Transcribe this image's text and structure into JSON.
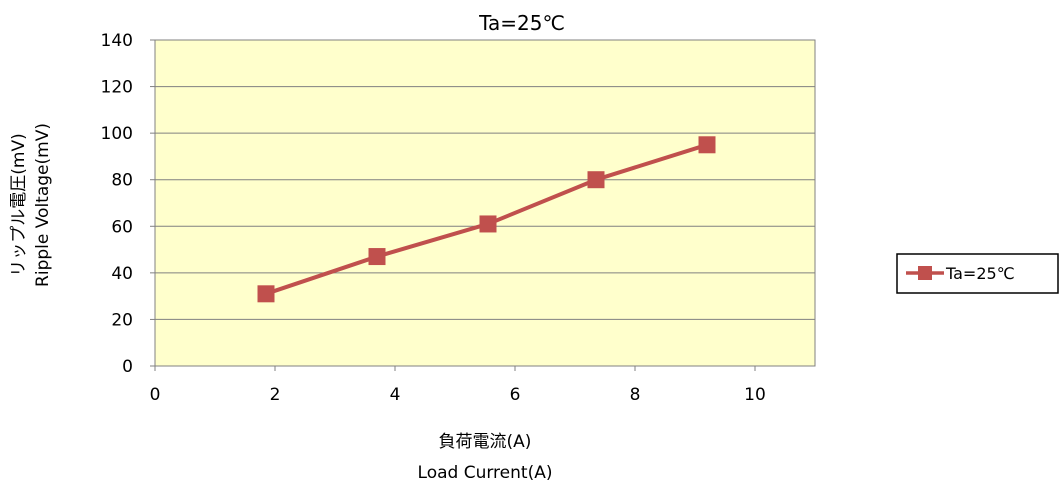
{
  "chart_data": {
    "type": "line",
    "title": "Ta=25℃",
    "xlabel": [
      "負荷電流(A)",
      "Load Current(A)"
    ],
    "ylabel": [
      "リップル電圧(mV)",
      "Ripple  Voltage(mV)"
    ],
    "xlim": [
      0,
      11
    ],
    "ylim": [
      0,
      140
    ],
    "xticks": [
      0,
      2,
      4,
      6,
      8,
      10
    ],
    "yticks": [
      0,
      20,
      40,
      60,
      80,
      100,
      120,
      140
    ],
    "grid": true,
    "legend_position": "right",
    "series": [
      {
        "name": "Ta=25℃",
        "color": "#c0504d",
        "marker": "square",
        "x": [
          1.85,
          3.7,
          5.55,
          7.35,
          9.2
        ],
        "y": [
          31,
          47,
          61,
          80,
          95
        ]
      }
    ],
    "plot_background": "#ffffcc"
  }
}
